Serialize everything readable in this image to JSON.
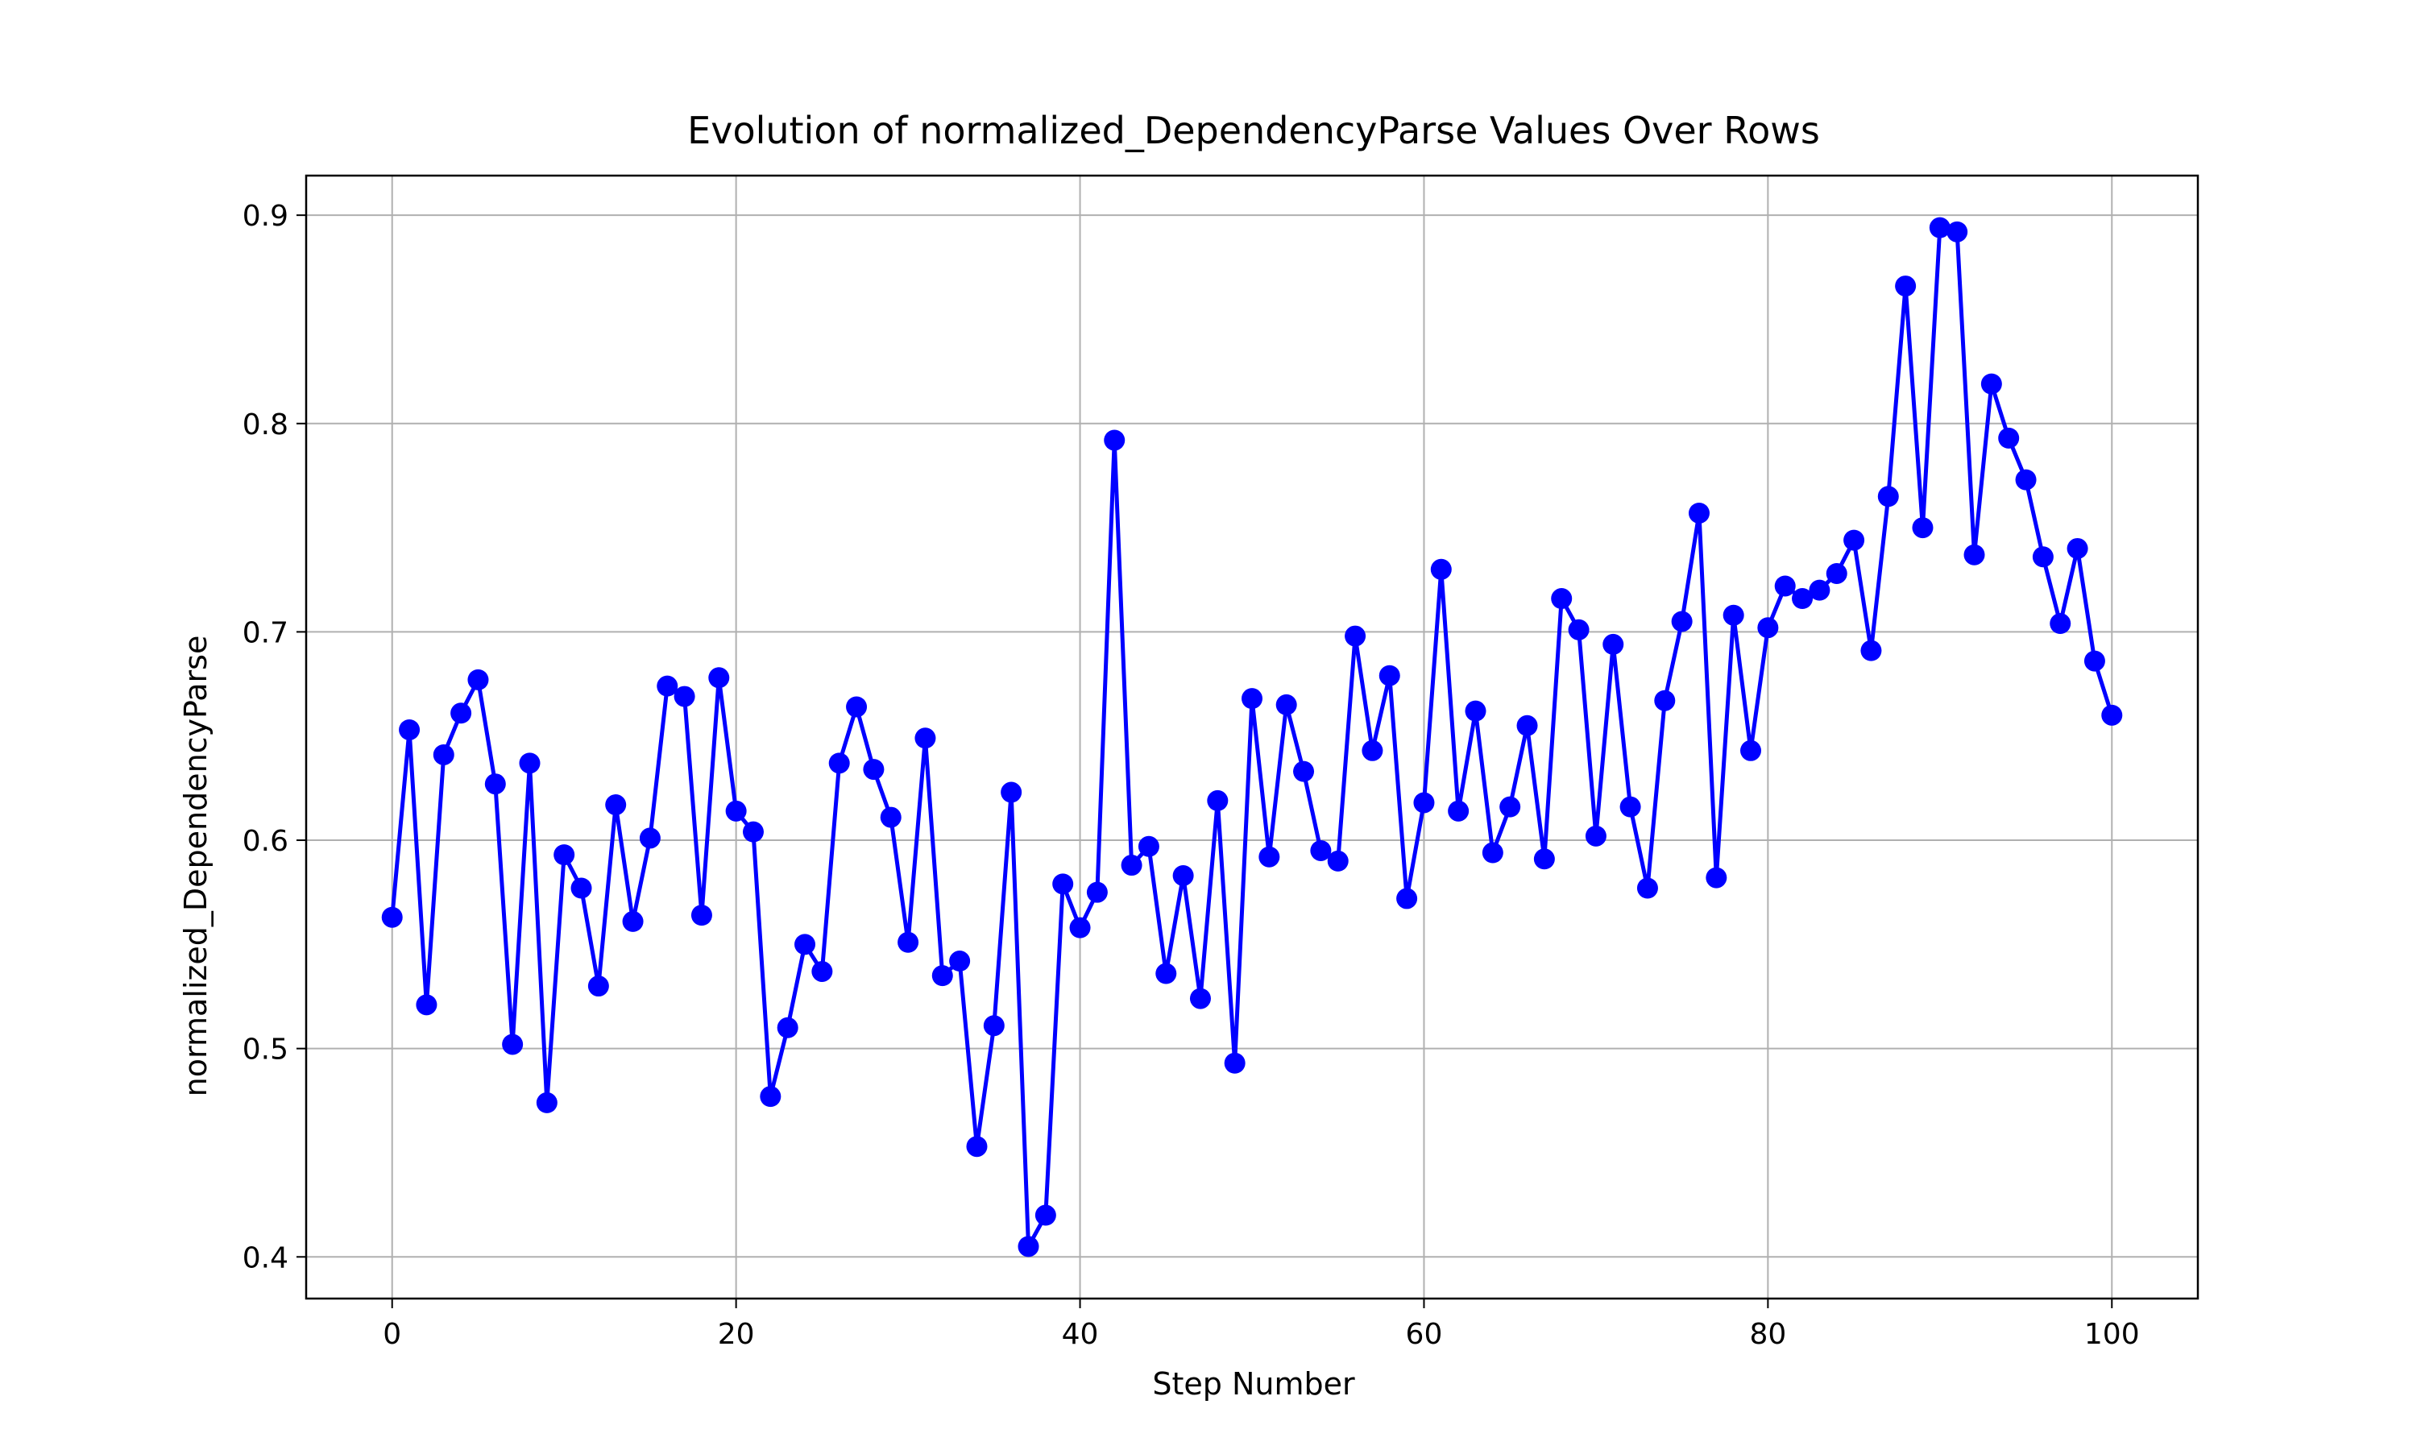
{
  "chart_data": {
    "type": "line",
    "title": "Evolution of normalized_DependencyParse Values Over Rows",
    "xlabel": "Step Number",
    "ylabel": "normalized_DependencyParse",
    "xlim": [
      -5,
      105
    ],
    "ylim": [
      0.38,
      0.919
    ],
    "x_ticks": [
      0,
      20,
      40,
      60,
      80,
      100
    ],
    "x_tick_labels": [
      "0",
      "20",
      "40",
      "60",
      "80",
      "100"
    ],
    "y_ticks": [
      0.4,
      0.5,
      0.6,
      0.7,
      0.8,
      0.9
    ],
    "y_tick_labels": [
      "0.4",
      "0.5",
      "0.6",
      "0.7",
      "0.8",
      "0.9"
    ],
    "grid": true,
    "marker": "circle",
    "color": "#0000ff",
    "series": [
      {
        "x": [
          0,
          1,
          2,
          3,
          4,
          5,
          6,
          7,
          8,
          9,
          10,
          11,
          12,
          13,
          14,
          15,
          16,
          17,
          18,
          19,
          20,
          21,
          22,
          23,
          24,
          25,
          26,
          27,
          28,
          29,
          30,
          31,
          32,
          33,
          34,
          35,
          36,
          37,
          38,
          39,
          40,
          41,
          42,
          43,
          44,
          45,
          46,
          47,
          48,
          49,
          50,
          51,
          52,
          53,
          54,
          55,
          56,
          57,
          58,
          59,
          60,
          61,
          62,
          63,
          64,
          65,
          66,
          67,
          68,
          69,
          70,
          71,
          72,
          73,
          74,
          75,
          76,
          77,
          78,
          79,
          80,
          81,
          82,
          83,
          84,
          85,
          86,
          87,
          88,
          89,
          90,
          91,
          92,
          93,
          94,
          95,
          96,
          97,
          98,
          99,
          100
        ],
        "values": [
          0.563,
          0.653,
          0.521,
          0.641,
          0.661,
          0.677,
          0.627,
          0.502,
          0.637,
          0.474,
          0.593,
          0.577,
          0.53,
          0.617,
          0.561,
          0.601,
          0.674,
          0.669,
          0.564,
          0.678,
          0.614,
          0.604,
          0.477,
          0.51,
          0.55,
          0.537,
          0.637,
          0.664,
          0.634,
          0.611,
          0.551,
          0.649,
          0.535,
          0.542,
          0.453,
          0.511,
          0.623,
          0.405,
          0.42,
          0.579,
          0.558,
          0.575,
          0.792,
          0.588,
          0.597,
          0.536,
          0.583,
          0.524,
          0.619,
          0.493,
          0.668,
          0.592,
          0.665,
          0.633,
          0.595,
          0.59,
          0.698,
          0.643,
          0.679,
          0.572,
          0.618,
          0.73,
          0.614,
          0.662,
          0.594,
          0.616,
          0.655,
          0.591,
          0.716,
          0.701,
          0.602,
          0.694,
          0.616,
          0.577,
          0.667,
          0.705,
          0.757,
          0.582,
          0.708,
          0.643,
          0.702,
          0.722,
          0.716,
          0.72,
          0.728,
          0.744,
          0.691,
          0.765,
          0.866,
          0.75,
          0.894,
          0.892,
          0.737,
          0.819,
          0.793,
          0.773,
          0.736,
          0.704,
          0.74,
          0.686,
          0.66
        ]
      }
    ]
  }
}
